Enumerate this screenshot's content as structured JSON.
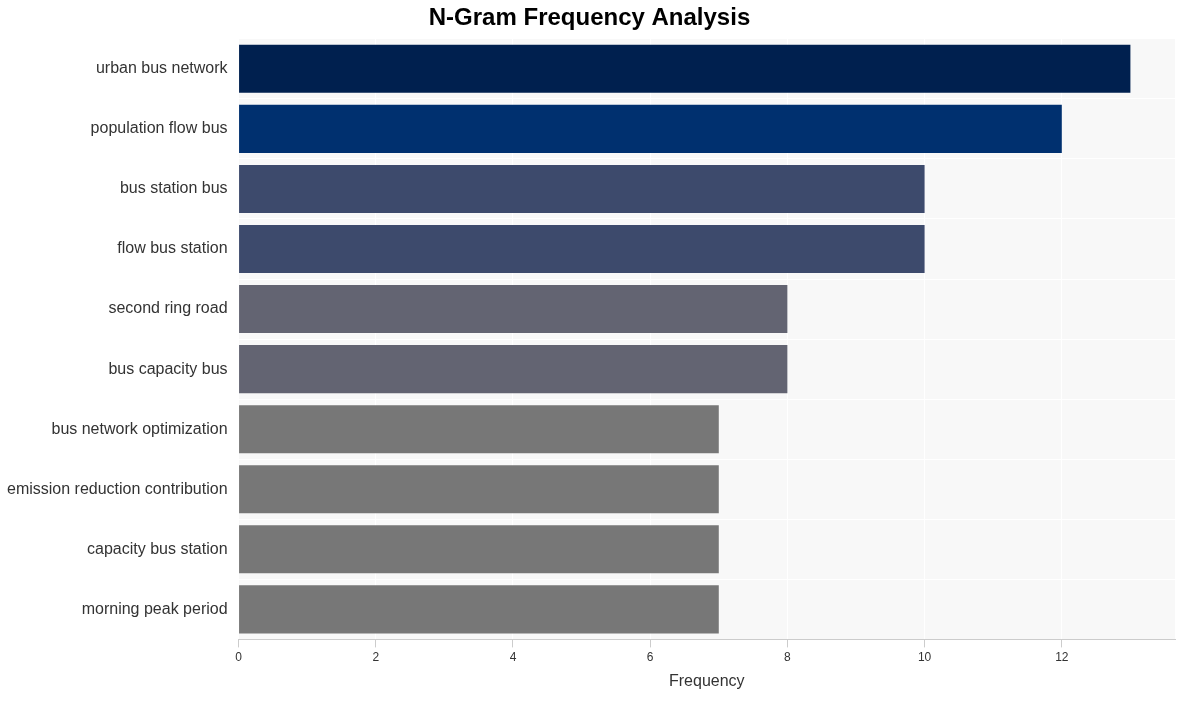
{
  "chart_data": {
    "type": "bar",
    "orientation": "horizontal",
    "title": "N-Gram Frequency Analysis",
    "x_label": "Frequency",
    "categories": [
      "urban bus network",
      "population flow bus",
      "bus station bus",
      "flow bus station",
      "second ring road",
      "bus capacity bus",
      "bus network optimization",
      "emission reduction contribution",
      "capacity bus station",
      "morning peak period"
    ],
    "values": [
      13,
      12,
      10,
      10,
      8,
      8,
      7,
      7,
      7,
      7
    ],
    "colors": [
      "#00204f",
      "#00306f",
      "#3d4a6c",
      "#3d4a6c",
      "#636472",
      "#636472",
      "#777777",
      "#777777",
      "#777777",
      "#777777"
    ],
    "xlim": [
      0,
      13.65
    ],
    "xticks": [
      0,
      2,
      4,
      6,
      8,
      10,
      12
    ],
    "grid": true
  }
}
